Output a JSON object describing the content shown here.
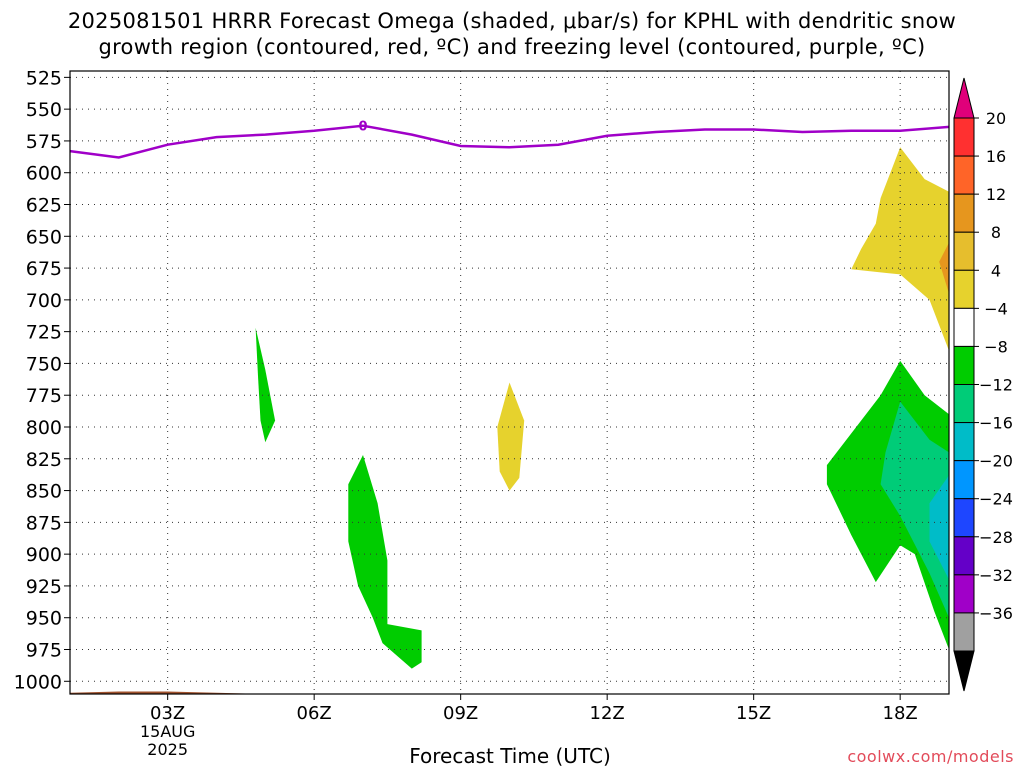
{
  "title": {
    "line1": "2025081501 HRRR Forecast Omega (shaded, μbar/s) for KPHL with dendritic snow",
    "line2": "growth region (contoured, red, ºC) and freezing level (contoured, purple, ºC)"
  },
  "credit": "coolwx.com/models",
  "chart_data": {
    "type": "area",
    "title": "2025081501 HRRR Forecast Omega (shaded, μbar/s) for KPHL with dendritic snow growth region (contoured, red, ºC) and freezing level (contoured, purple, ºC)",
    "xlabel": "Forecast Time (UTC)",
    "ylabel": "",
    "x_range_hours": [
      1,
      19
    ],
    "y_range_hPa": [
      520,
      1010
    ],
    "grid": true,
    "x_ticks": [
      {
        "hour": 3,
        "label": "03Z",
        "sub1": "15AUG",
        "sub2": "2025"
      },
      {
        "hour": 6,
        "label": "06Z"
      },
      {
        "hour": 9,
        "label": "09Z"
      },
      {
        "hour": 12,
        "label": "12Z"
      },
      {
        "hour": 15,
        "label": "15Z"
      },
      {
        "hour": 18,
        "label": "18Z"
      }
    ],
    "y_ticks": [
      525,
      550,
      575,
      600,
      625,
      650,
      675,
      700,
      725,
      750,
      775,
      800,
      825,
      850,
      875,
      900,
      925,
      950,
      975,
      1000
    ],
    "freezing_level": {
      "label": "0",
      "color": "#a000c8",
      "points": [
        [
          1.0,
          583
        ],
        [
          2.0,
          588
        ],
        [
          3.0,
          578
        ],
        [
          4.0,
          572
        ],
        [
          5.0,
          570
        ],
        [
          6.0,
          567
        ],
        [
          7.0,
          563
        ],
        [
          8.0,
          570
        ],
        [
          9.0,
          579
        ],
        [
          10.0,
          580
        ],
        [
          11.0,
          578
        ],
        [
          12.0,
          571
        ],
        [
          13.0,
          568
        ],
        [
          14.0,
          566
        ],
        [
          15.0,
          566
        ],
        [
          16.0,
          568
        ],
        [
          17.0,
          567
        ],
        [
          18.0,
          567
        ],
        [
          19.0,
          564
        ]
      ]
    },
    "terrain": {
      "color": "#a0522d",
      "points": [
        [
          1.0,
          1009
        ],
        [
          2.0,
          1008
        ],
        [
          3.0,
          1008
        ],
        [
          4.0,
          1009
        ],
        [
          5.0,
          1010
        ],
        [
          6.0,
          1010
        ],
        [
          7.0,
          1010
        ],
        [
          8.0,
          1010
        ],
        [
          9.0,
          1010
        ],
        [
          10.0,
          1010
        ],
        [
          11.0,
          1010
        ],
        [
          12.0,
          1010
        ],
        [
          13.0,
          1010
        ],
        [
          14.0,
          1010
        ],
        [
          15.0,
          1010
        ],
        [
          16.0,
          1010
        ],
        [
          17.0,
          1010
        ],
        [
          18.0,
          1010
        ],
        [
          19.0,
          1010
        ]
      ]
    },
    "omega_regions": [
      {
        "name": "-4",
        "color": "#00cc00",
        "points": [
          [
            4.8,
            722
          ],
          [
            5.0,
            755
          ],
          [
            5.2,
            795
          ],
          [
            5.0,
            812
          ],
          [
            4.9,
            795
          ],
          [
            4.85,
            760
          ]
        ]
      },
      {
        "name": "4",
        "color": "#e6d22d",
        "points": [
          [
            10.0,
            765
          ],
          [
            10.3,
            795
          ],
          [
            10.2,
            840
          ],
          [
            10.0,
            850
          ],
          [
            9.8,
            835
          ],
          [
            9.75,
            800
          ]
        ]
      },
      {
        "name": "-4",
        "color": "#00cc00",
        "points": [
          [
            7.0,
            822
          ],
          [
            7.3,
            860
          ],
          [
            7.5,
            905
          ],
          [
            7.5,
            955
          ],
          [
            8.2,
            960
          ],
          [
            8.2,
            985
          ],
          [
            8.0,
            990
          ],
          [
            7.4,
            970
          ],
          [
            7.2,
            950
          ],
          [
            6.9,
            925
          ],
          [
            6.7,
            890
          ],
          [
            6.7,
            845
          ]
        ]
      },
      {
        "name": "4",
        "color": "#e6d22d",
        "points": [
          [
            18.0,
            580
          ],
          [
            18.5,
            605
          ],
          [
            19.0,
            615
          ],
          [
            19.0,
            740
          ],
          [
            18.6,
            700
          ],
          [
            18.0,
            680
          ],
          [
            17.0,
            676
          ],
          [
            17.2,
            660
          ],
          [
            17.5,
            640
          ],
          [
            17.6,
            620
          ]
        ]
      },
      {
        "name": "8",
        "color": "#e6961e",
        "points": [
          [
            19.0,
            655
          ],
          [
            18.8,
            670
          ],
          [
            19.0,
            695
          ]
        ]
      },
      {
        "name": "-4",
        "color": "#00cc00",
        "points": [
          [
            18.0,
            748
          ],
          [
            18.5,
            775
          ],
          [
            19.0,
            790
          ],
          [
            19.0,
            975
          ],
          [
            18.7,
            945
          ],
          [
            18.3,
            900
          ],
          [
            18.0,
            893
          ],
          [
            17.5,
            922
          ],
          [
            17.0,
            885
          ],
          [
            16.5,
            845
          ],
          [
            16.5,
            830
          ],
          [
            17.0,
            805
          ],
          [
            17.6,
            775
          ]
        ]
      },
      {
        "name": "-8",
        "color": "#00cc78",
        "points": [
          [
            18.0,
            780
          ],
          [
            18.6,
            810
          ],
          [
            19.0,
            820
          ],
          [
            19.0,
            950
          ],
          [
            18.6,
            915
          ],
          [
            18.0,
            870
          ],
          [
            17.6,
            845
          ],
          [
            17.7,
            820
          ]
        ]
      },
      {
        "name": "-12",
        "color": "#00bcc8",
        "points": [
          [
            19.0,
            838
          ],
          [
            18.6,
            860
          ],
          [
            18.6,
            890
          ],
          [
            19.0,
            920
          ]
        ]
      }
    ],
    "colorbar": {
      "labels": [
        "20",
        "16",
        "12",
        "8",
        "4",
        "−4",
        "−8",
        "−12",
        "−16",
        "−20",
        "−24",
        "−28",
        "−32",
        "−36"
      ],
      "colors": [
        "#e0007a",
        "#ff3030",
        "#ff6428",
        "#e6961e",
        "#e6be2d",
        "#e6d22d",
        "#ffffff",
        "#00cc00",
        "#00cc78",
        "#00bcc8",
        "#0096ff",
        "#1e46ff",
        "#6400c8",
        "#a000c8",
        "#a0a0a0",
        "#000000"
      ]
    }
  }
}
